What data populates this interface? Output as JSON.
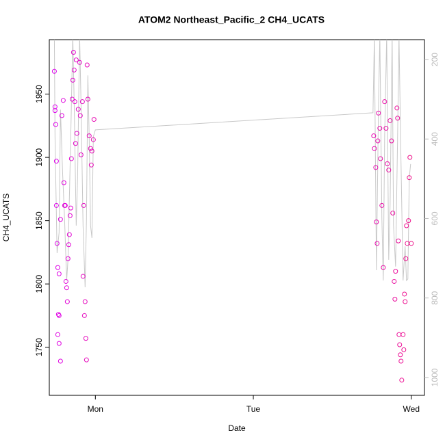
{
  "chart_data": {
    "type": "scatter",
    "title": "ATOM2 Northeast_Pacific_2 CH4_UCATS",
    "xlabel": "Date",
    "ylabel": "CH4_UCATS",
    "xlim": [
      -7,
      50
    ],
    "xticks": [
      {
        "value": 0,
        "label": "Mon"
      },
      {
        "value": 24,
        "label": "Tue"
      },
      {
        "value": 48,
        "label": "Wed"
      }
    ],
    "ylim": [
      1712,
      1993
    ],
    "yticks": [
      1750,
      1800,
      1850,
      1900,
      1950
    ],
    "y2lim": [
      1045,
      150
    ],
    "y2ticks": [
      200,
      400,
      600,
      800,
      1000
    ],
    "point_colors": [
      "#dd00ee",
      "#ee1188"
    ],
    "x": [
      -6.23,
      -6.13,
      -6.13,
      -6.03,
      -5.92,
      -5.92,
      -5.82,
      -5.71,
      -5.51,
      -5.61,
      -5.51,
      -5.71,
      -5.51,
      -5.3,
      -5.3,
      -5.09,
      -4.88,
      -4.78,
      -4.68,
      -4.57,
      -4.47,
      -4.36,
      -4.26,
      -4.16,
      -4.05,
      -3.95,
      -3.84,
      -3.74,
      -3.64,
      -3.53,
      -3.43,
      -3.32,
      -3.22,
      -3.12,
      -3.01,
      -2.91,
      -2.81,
      -2.6,
      -2.39,
      -2.29,
      -2.18,
      -1.97,
      -1.87,
      -1.77,
      -1.66,
      -1.56,
      -1.45,
      -1.35,
      -1.25,
      -1.14,
      -0.94,
      -0.73,
      -0.62,
      -0.52,
      -0.31,
      -0.21,
      42.29,
      42.39,
      42.6,
      42.7,
      42.81,
      42.91,
      43.01,
      43.22,
      43.32,
      43.53,
      43.74,
      43.95,
      44.16,
      44.36,
      44.57,
      44.78,
      44.99,
      45.19,
      45.4,
      45.51,
      45.61,
      45.82,
      45.92,
      46.03,
      46.13,
      46.23,
      46.34,
      46.44,
      46.55,
      46.75,
      46.86,
      46.96,
      47.06,
      47.17,
      47.27,
      47.38,
      47.58,
      47.69,
      47.79,
      48.0
    ],
    "values": [
      1968,
      1940,
      1937,
      1926,
      1897,
      1862,
      1832,
      1813,
      1808,
      1776,
      1775,
      1760,
      1753,
      1739,
      1851,
      1933,
      1945,
      1880,
      1862,
      1862,
      1802,
      1797,
      1786,
      1820,
      1831,
      1839,
      1854,
      1860,
      1899,
      1946,
      1961,
      1983,
      1969,
      1944,
      1911,
      1977,
      1919,
      1938,
      1975,
      1933,
      1902,
      1944,
      1806,
      1862,
      1775,
      1786,
      1757,
      1740,
      1973,
      1946,
      1917,
      1907,
      1894,
      1905,
      1914,
      1930,
      1917,
      1907,
      1892,
      1849,
      1832,
      1913,
      1935,
      1923,
      1899,
      1862,
      1813,
      1944,
      1923,
      1895,
      1890,
      1929,
      1913,
      1856,
      1802,
      1788,
      1810,
      1939,
      1931,
      1834,
      1760,
      1752,
      1744,
      1739,
      1724,
      1760,
      1748,
      1792,
      1786,
      1820,
      1846,
      1832,
      1850,
      1884,
      1900,
      1832
    ],
    "line": {
      "axis": "y2",
      "color": "#c8c8c8",
      "x": [
        -6.23,
        -6.13,
        -5.82,
        -5.51,
        -5.3,
        -4.99,
        -4.68,
        -4.36,
        -4.16,
        -3.74,
        -3.43,
        -3.22,
        -2.91,
        -2.7,
        -2.39,
        -2.18,
        -1.87,
        -1.56,
        -1.35,
        -1.14,
        -0.94,
        -0.73,
        -0.52,
        -0.31,
        0,
        42.18,
        42.39,
        42.7,
        43.01,
        43.22,
        43.53,
        43.74,
        43.95,
        44.26,
        44.57,
        44.78,
        45.09,
        45.3,
        45.61,
        45.92,
        46.13,
        46.44,
        46.75,
        47.06,
        47.27,
        47.48,
        47.69,
        47.9
      ],
      "values": [
        140,
        394,
        687,
        635,
        326,
        480,
        601,
        756,
        704,
        394,
        140,
        308,
        618,
        498,
        140,
        308,
        618,
        773,
        601,
        240,
        394,
        618,
        649,
        394,
        377,
        334,
        140,
        730,
        326,
        140,
        601,
        756,
        394,
        140,
        704,
        566,
        140,
        618,
        721,
        394,
        140,
        463,
        756,
        670,
        756,
        752,
        498,
        463
      ]
    }
  }
}
